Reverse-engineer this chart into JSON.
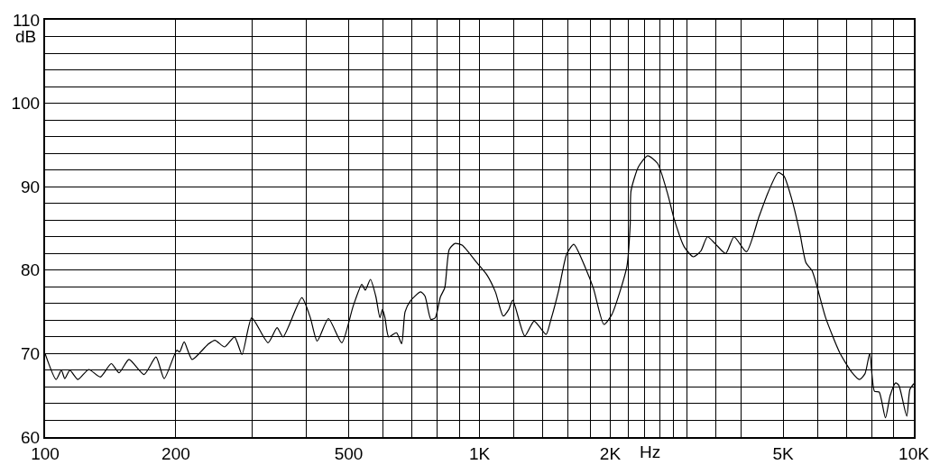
{
  "chart_data": {
    "type": "line",
    "xlabel": "Hz",
    "ylabel": "dB",
    "log": "x",
    "grid": true,
    "legend": false,
    "xlim": [
      100,
      10000
    ],
    "ylim": [
      60,
      110
    ],
    "xticks": [
      100,
      200,
      {
        "value": 300,
        "label": null
      },
      {
        "value": 400,
        "label": null
      },
      500,
      {
        "value": 600,
        "label": null
      },
      {
        "value": 700,
        "label": null
      },
      {
        "value": 800,
        "label": null
      },
      {
        "value": 900,
        "label": null
      },
      {
        "value": 1000,
        "label": "1K"
      },
      {
        "value": 1200,
        "label": null
      },
      {
        "value": 1400,
        "label": null
      },
      {
        "value": 1600,
        "label": null
      },
      {
        "value": 1800,
        "label": null
      },
      {
        "value": 2000,
        "label": "2K"
      },
      {
        "value": 2200,
        "label": null
      },
      {
        "value": 2400,
        "label": null
      },
      {
        "value": 2600,
        "label": null
      },
      {
        "value": 2800,
        "label": null
      },
      {
        "value": 3000,
        "label": null
      },
      {
        "value": 3500,
        "label": null
      },
      {
        "value": 4000,
        "label": null
      },
      {
        "value": 5000,
        "label": "5K"
      },
      {
        "value": 6000,
        "label": null
      },
      {
        "value": 7000,
        "label": null
      },
      {
        "value": 8000,
        "label": null
      },
      {
        "value": 9000,
        "label": null
      },
      {
        "value": 10000,
        "label": "10K"
      }
    ],
    "yticks": [
      60,
      {
        "value": 62,
        "label": null
      },
      {
        "value": 64,
        "label": null
      },
      {
        "value": 66,
        "label": null
      },
      {
        "value": 68,
        "label": null
      },
      70,
      {
        "value": 72,
        "label": null
      },
      {
        "value": 74,
        "label": null
      },
      {
        "value": 76,
        "label": null
      },
      {
        "value": 78,
        "label": null
      },
      80,
      {
        "value": 82,
        "label": null
      },
      {
        "value": 84,
        "label": null
      },
      {
        "value": 86,
        "label": null
      },
      {
        "value": 88,
        "label": null
      },
      90,
      {
        "value": 92,
        "label": null
      },
      {
        "value": 94,
        "label": null
      },
      {
        "value": 96,
        "label": null
      },
      {
        "value": 98,
        "label": null
      },
      100,
      {
        "value": 102,
        "label": null
      },
      {
        "value": 104,
        "label": null
      },
      {
        "value": 106,
        "label": null
      },
      {
        "value": 108,
        "label": null
      },
      110
    ],
    "series": [
      {
        "color": "#000000",
        "x": [
          100,
          106,
          109,
          111,
          114,
          119,
          126,
          134,
          142,
          148,
          156,
          169,
          180,
          188,
          201,
          204,
          209,
          218,
          237,
          246,
          259,
          273,
          284,
          299,
          326,
          342,
          353,
          390,
          408,
          423,
          449,
          482,
          512,
          536,
          546,
          561,
          577,
          590,
          598,
          606,
          618,
          644,
          662,
          674,
          693,
          732,
          749,
          773,
          791,
          813,
          832,
          852,
          879,
          912,
          986,
          1038,
          1088,
          1134,
          1168,
          1193,
          1271,
          1336,
          1423,
          1459,
          1522,
          1587,
          1649,
          1756,
          1830,
          1934,
          2018,
          2184,
          2223,
          2233,
          2323,
          2439,
          2570,
          2710,
          2808,
          2960,
          3107,
          3233,
          3348,
          3499,
          3689,
          3855,
          4118,
          4400,
          4617,
          4869,
          5021,
          5236,
          5459,
          5644,
          5835,
          6266,
          6753,
          7191,
          7498,
          7720,
          7915,
          8115,
          8321,
          8603,
          8822,
          9083,
          9237,
          9630,
          9792,
          10000
        ],
        "values": [
          70.0,
          66.9,
          68.0,
          67.0,
          68.0,
          66.9,
          68.1,
          67.2,
          68.8,
          67.7,
          69.3,
          67.5,
          69.6,
          67.0,
          70.4,
          70.2,
          71.4,
          69.3,
          71.1,
          71.6,
          70.8,
          72.0,
          69.9,
          74.3,
          71.3,
          73.1,
          72.0,
          76.7,
          74.3,
          71.5,
          74.2,
          71.3,
          75.7,
          78.3,
          77.6,
          78.9,
          76.9,
          74.3,
          75.3,
          74.3,
          72.0,
          72.5,
          71.2,
          75.0,
          76.3,
          77.4,
          76.9,
          74.1,
          74.3,
          76.8,
          77.9,
          82.5,
          83.2,
          83.0,
          80.9,
          79.5,
          77.4,
          74.5,
          75.3,
          76.4,
          72.1,
          73.9,
          72.3,
          74.0,
          77.6,
          81.9,
          83.1,
          80.2,
          77.8,
          73.5,
          74.7,
          80.4,
          85.4,
          89.5,
          92.4,
          93.7,
          92.8,
          89.2,
          86.1,
          82.8,
          81.6,
          82.3,
          84.0,
          83.1,
          82.0,
          84.0,
          82.2,
          86.4,
          89.3,
          91.7,
          91.3,
          88.5,
          84.6,
          80.9,
          79.9,
          74.3,
          70.1,
          67.8,
          66.9,
          67.6,
          70.0,
          65.5,
          65.4,
          62.3,
          65.0,
          66.5,
          66.2,
          62.5,
          65.7,
          66.4
        ]
      }
    ]
  }
}
